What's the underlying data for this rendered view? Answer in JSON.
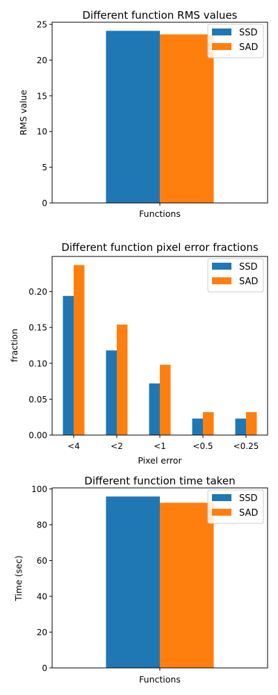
{
  "colors": {
    "SSD": "#1f77b4",
    "SAD": "#ff7f0e"
  },
  "chart_data": [
    {
      "type": "bar",
      "title": "Different function RMS values",
      "xlabel": "Functions",
      "ylabel": "RMS value",
      "categories": [
        ""
      ],
      "series": [
        {
          "name": "SSD",
          "values": [
            24.1
          ]
        },
        {
          "name": "SAD",
          "values": [
            23.6
          ]
        }
      ],
      "ylim": [
        0,
        25.3
      ],
      "yticks": [
        0,
        5,
        10,
        15,
        20,
        25
      ],
      "ytick_labels": [
        "0",
        "5",
        "10",
        "15",
        "20",
        "25"
      ],
      "legend": "top-right",
      "grid": false
    },
    {
      "type": "bar",
      "title": "Different function pixel error fractions",
      "xlabel": "Pixel error",
      "ylabel": "fraction",
      "categories": [
        "<4",
        "<2",
        "<1",
        "<0.5",
        "<0.25"
      ],
      "series": [
        {
          "name": "SSD",
          "values": [
            0.194,
            0.118,
            0.072,
            0.023,
            0.023
          ]
        },
        {
          "name": "SAD",
          "values": [
            0.237,
            0.154,
            0.098,
            0.032,
            0.032
          ]
        }
      ],
      "ylim": [
        0,
        0.249
      ],
      "yticks": [
        0,
        0.05,
        0.1,
        0.15,
        0.2
      ],
      "ytick_labels": [
        "0.00",
        "0.05",
        "0.10",
        "0.15",
        "0.20"
      ],
      "legend": "top-right",
      "grid": false
    },
    {
      "type": "bar",
      "title": "Different function time taken",
      "xlabel": "Functions",
      "ylabel": "Time (sec)",
      "categories": [
        ""
      ],
      "series": [
        {
          "name": "SSD",
          "values": [
            95.8
          ]
        },
        {
          "name": "SAD",
          "values": [
            92.3
          ]
        }
      ],
      "ylim": [
        0,
        100.6
      ],
      "yticks": [
        0,
        20,
        40,
        60,
        80,
        100
      ],
      "ytick_labels": [
        "0",
        "20",
        "40",
        "60",
        "80",
        "100"
      ],
      "legend": "top-right",
      "grid": false
    }
  ]
}
